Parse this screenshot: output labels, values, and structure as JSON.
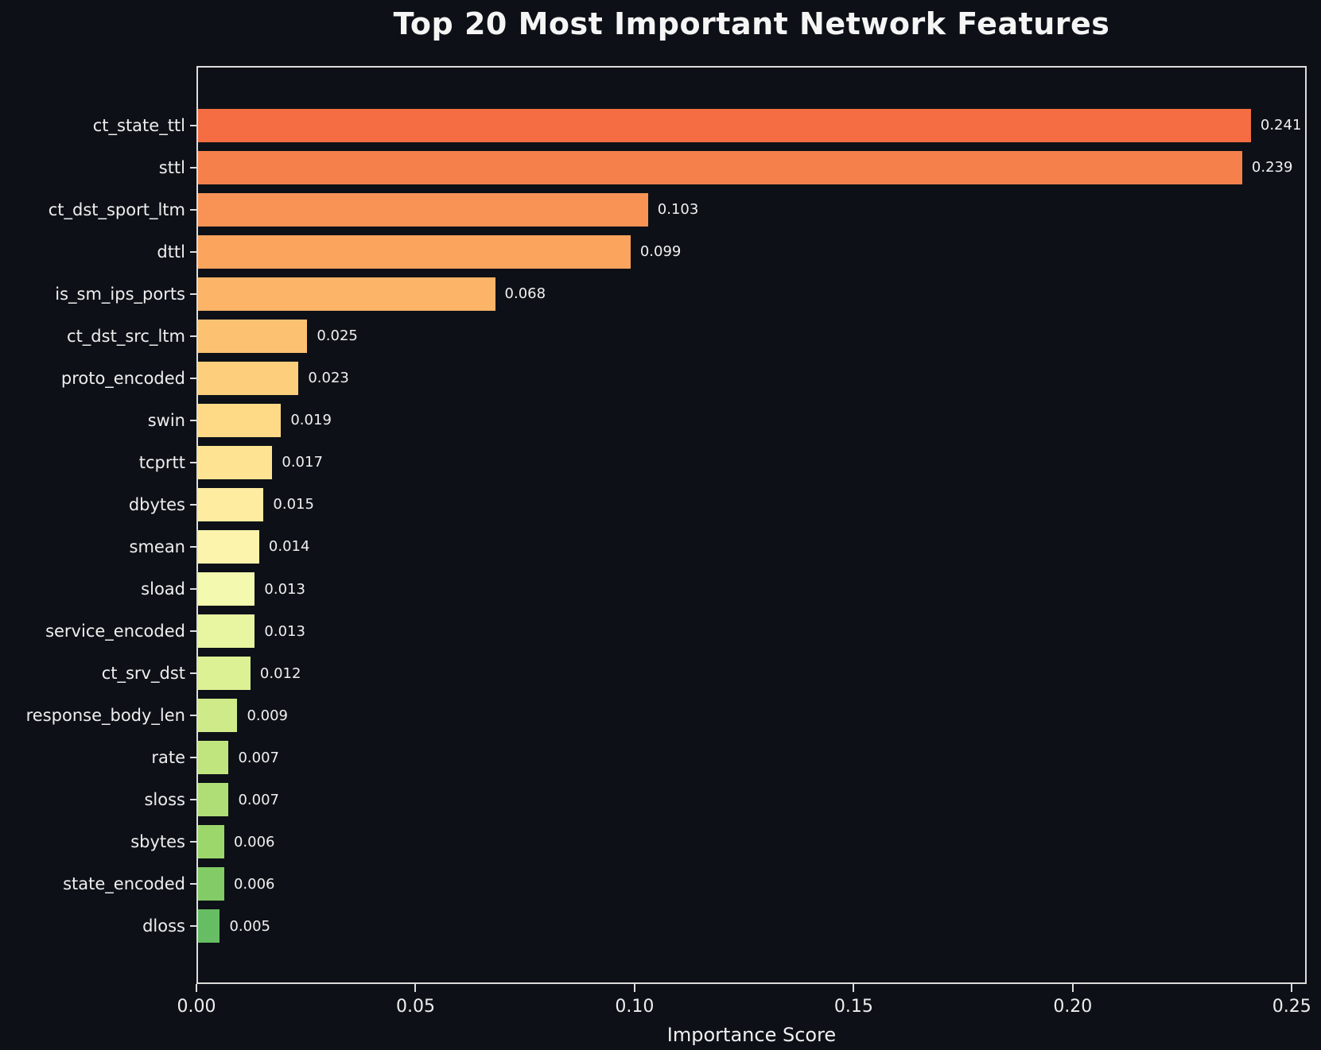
{
  "title": "Top 20 Most Important Network Features",
  "colors": {
    "background": "#0d1117",
    "axis": "#dcdcdc",
    "title_text": "#f5f5f5",
    "label_text": "#eeeeee"
  },
  "chart_data": {
    "type": "bar",
    "orientation": "horizontal",
    "title": "Top 20 Most Important Network Features",
    "xlabel": "Importance Score",
    "ylabel": "",
    "xlim": [
      0,
      0.2534
    ],
    "grid": false,
    "legend": null,
    "x_tick_values": [
      0.0,
      0.05,
      0.1,
      0.15,
      0.2,
      0.25
    ],
    "x_tick_labels": [
      "0.00",
      "0.05",
      "0.10",
      "0.15",
      "0.20",
      "0.25"
    ],
    "categories": [
      "ct_state_ttl",
      "sttl",
      "ct_dst_sport_ltm",
      "dttl",
      "is_sm_ips_ports",
      "ct_dst_src_ltm",
      "proto_encoded",
      "swin",
      "tcprtt",
      "dbytes",
      "smean",
      "sload",
      "service_encoded",
      "ct_srv_dst",
      "response_body_len",
      "rate",
      "sloss",
      "sbytes",
      "state_encoded",
      "dloss"
    ],
    "values": [
      0.241,
      0.239,
      0.103,
      0.099,
      0.068,
      0.025,
      0.023,
      0.019,
      0.017,
      0.015,
      0.014,
      0.013,
      0.013,
      0.012,
      0.009,
      0.007,
      0.007,
      0.006,
      0.006,
      0.005
    ],
    "value_labels": [
      "0.241",
      "0.239",
      "0.103",
      "0.099",
      "0.068",
      "0.025",
      "0.023",
      "0.019",
      "0.017",
      "0.015",
      "0.014",
      "0.013",
      "0.013",
      "0.012",
      "0.009",
      "0.007",
      "0.007",
      "0.006",
      "0.006",
      "0.005"
    ],
    "bar_colors": [
      "#f46d43",
      "#f6804c",
      "#f99355",
      "#fba45e",
      "#fcb468",
      "#fdc271",
      "#fdcf7c",
      "#feda86",
      "#fee492",
      "#feeca0",
      "#fcf4ac",
      "#f3f9ae",
      "#e8f5a1",
      "#dcf094",
      "#cfeb89",
      "#c1e57e",
      "#b0de76",
      "#9bd76b",
      "#83cb66",
      "#66bd63"
    ]
  }
}
